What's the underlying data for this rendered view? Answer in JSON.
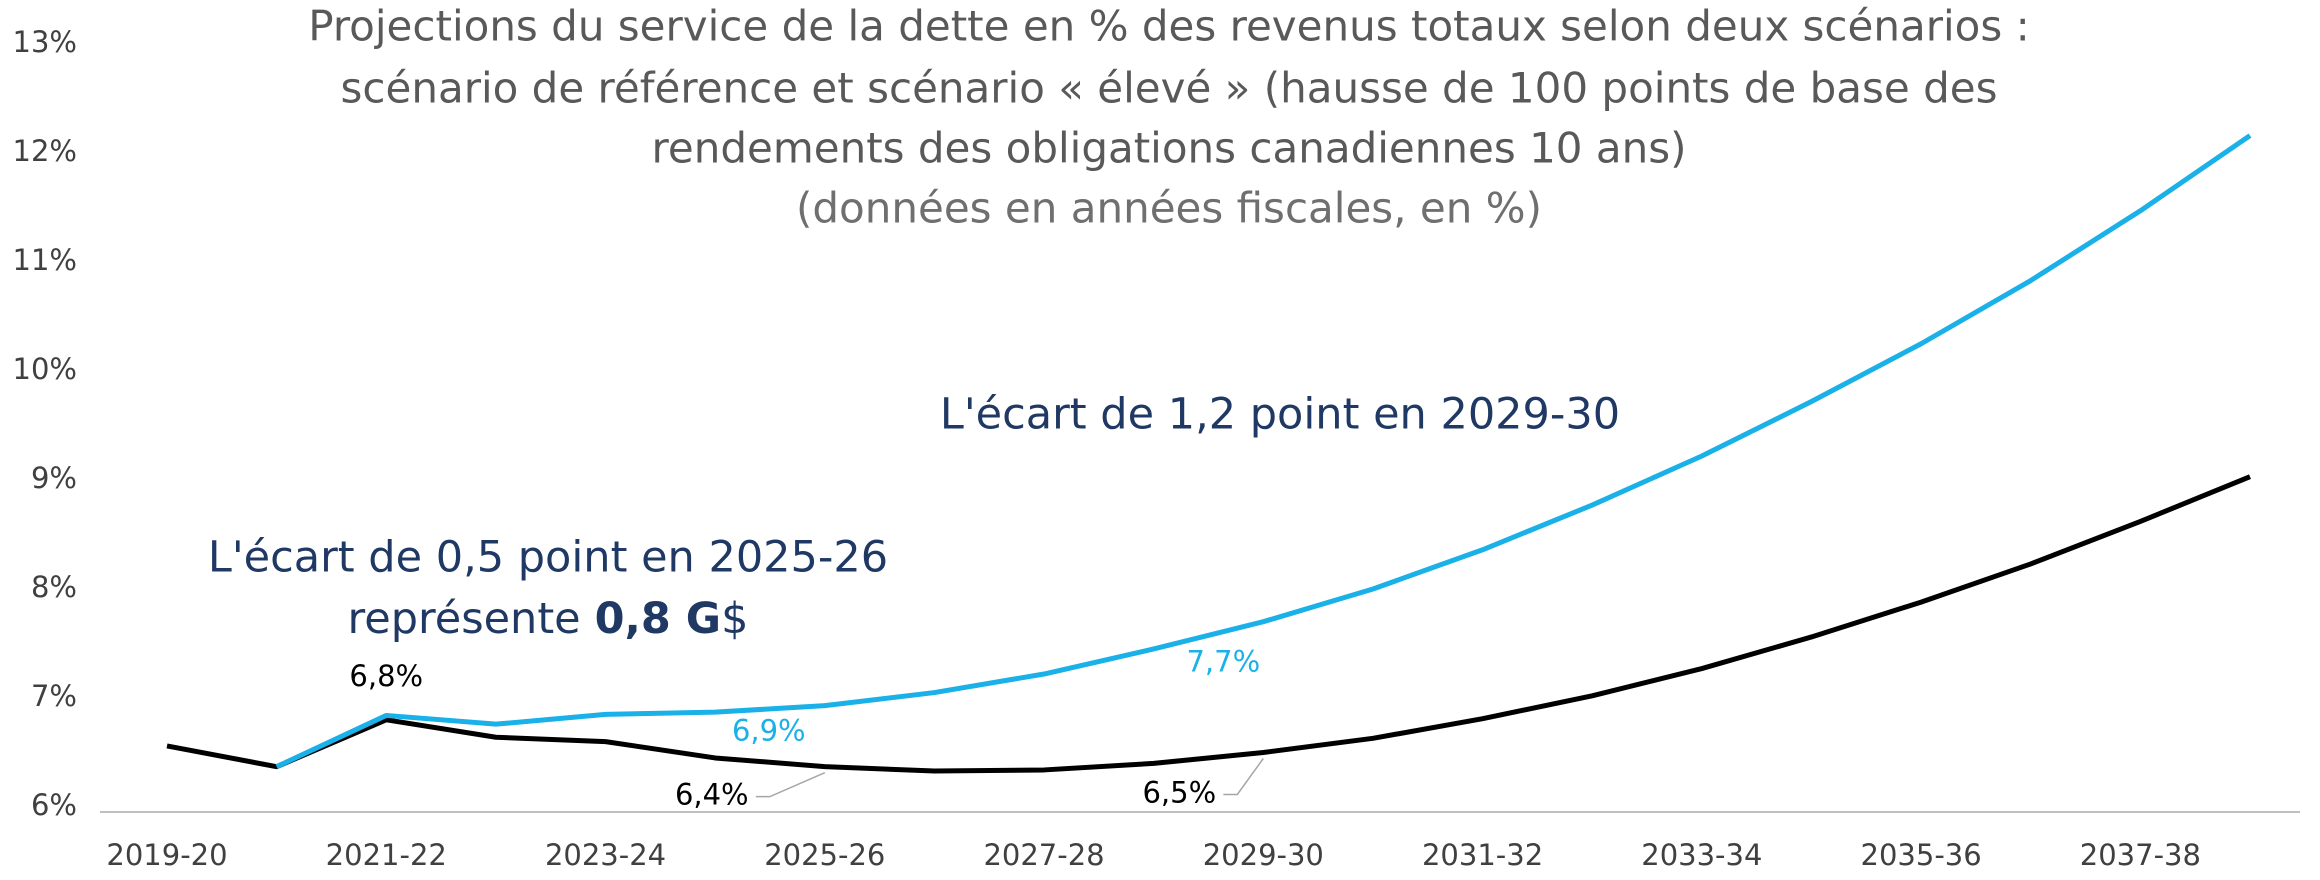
{
  "chart_data": {
    "type": "line",
    "title": [
      "Projections du service de la dette en % des revenus totaux selon deux scénarios :",
      "scénario de référence et scénario « élevé » (hausse de 100 points de base des",
      "rendements des obligations canadiennes 10 ans)"
    ],
    "subtitle": "(données en années fiscales, en %)",
    "annotations": [
      "L'écart de 1,2 point en 2029-30",
      "L'écart de 0,5 point en 2025-26",
      [
        "représente",
        "0,8 G",
        "$"
      ]
    ],
    "categories": [
      "2019-20",
      null,
      "2021-22",
      null,
      "2023-24",
      null,
      "2025-26",
      null,
      "2027-28",
      null,
      "2029-30",
      null,
      "2031-32",
      null,
      "2033-34",
      null,
      "2035-36",
      null,
      "2037-38",
      null
    ],
    "series": [
      {
        "color": "#000000",
        "values": [
          6.56,
          6.37,
          6.8,
          6.64,
          6.6,
          6.45,
          6.37,
          6.33,
          6.34,
          6.4,
          6.5,
          6.63,
          6.81,
          7.02,
          7.27,
          7.56,
          7.88,
          8.23,
          8.62,
          9.03
        ],
        "value_labels": [
          null,
          null,
          "6,8%",
          null,
          null,
          null,
          "6,4%",
          null,
          null,
          null,
          "6,5%",
          null,
          null,
          null,
          null,
          null,
          null,
          null,
          null,
          null
        ]
      },
      {
        "color": "#1ab0e8",
        "values": [
          null,
          6.37,
          6.84,
          6.76,
          6.85,
          6.87,
          6.93,
          7.05,
          7.22,
          7.45,
          7.7,
          8.0,
          8.36,
          8.77,
          9.22,
          9.72,
          10.25,
          10.83,
          11.47,
          12.16
        ],
        "value_labels": [
          null,
          null,
          null,
          null,
          null,
          null,
          "6,9%",
          null,
          null,
          null,
          "7,7%",
          null,
          null,
          null,
          null,
          null,
          null,
          null,
          null,
          null
        ]
      }
    ],
    "ylim": [
      6,
      13
    ],
    "yticks": [
      {
        "value": 6,
        "label": "6%"
      },
      {
        "value": 7,
        "label": "7%"
      },
      {
        "value": 8,
        "label": "8%"
      },
      {
        "value": 9,
        "label": "9%"
      },
      {
        "value": 10,
        "label": "10%"
      },
      {
        "value": 11,
        "label": "11%"
      },
      {
        "value": 12,
        "label": "12%"
      },
      {
        "value": 13,
        "label": "13%"
      }
    ],
    "grid": false
  }
}
